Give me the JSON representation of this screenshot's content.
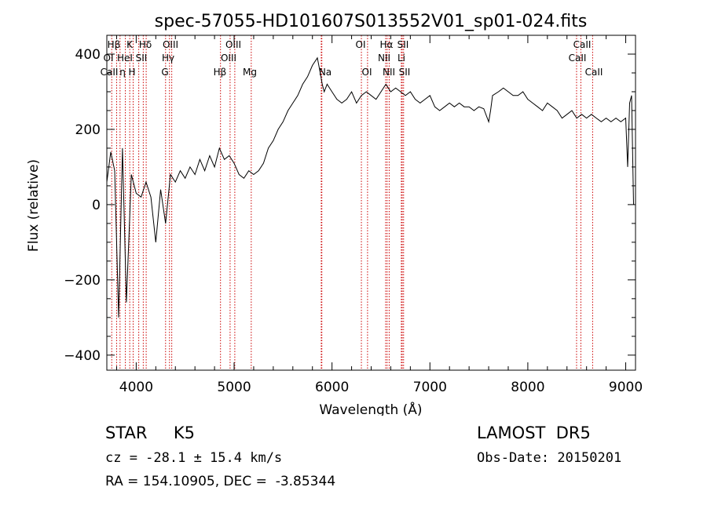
{
  "chart_data": {
    "type": "line",
    "title": "spec-57055-HD101607S013552V01_sp01-024.fits",
    "xlabel": "Wavelength (Å)",
    "ylabel": "Flux (relative)",
    "xlim": [
      3700,
      9100
    ],
    "ylim": [
      -440,
      450
    ],
    "xticks": [
      4000,
      5000,
      6000,
      7000,
      8000,
      9000
    ],
    "yticks": [
      -400,
      -200,
      0,
      200,
      400
    ],
    "grid": false,
    "line_color": "#000000",
    "marker_color": "#cc0000",
    "series": [
      {
        "x": [
          3700,
          3740,
          3780,
          3820,
          3860,
          3900,
          3950,
          4000,
          4050,
          4100,
          4150,
          4200,
          4250,
          4300,
          4350,
          4400,
          4450,
          4500,
          4550,
          4600,
          4650,
          4700,
          4750,
          4800,
          4850,
          4900,
          4950,
          5000,
          5050,
          5100,
          5150,
          5200,
          5250,
          5300,
          5350,
          5400,
          5450,
          5500,
          5550,
          5600,
          5650,
          5700,
          5750,
          5800,
          5850,
          5880,
          5900,
          5920,
          5950,
          6000,
          6050,
          6100,
          6150,
          6200,
          6250,
          6300,
          6350,
          6400,
          6450,
          6500,
          6550,
          6600,
          6650,
          6700,
          6750,
          6800,
          6850,
          6900,
          6950,
          7000,
          7050,
          7100,
          7150,
          7200,
          7250,
          7300,
          7350,
          7400,
          7450,
          7500,
          7550,
          7600,
          7620,
          7640,
          7700,
          7750,
          7800,
          7850,
          7900,
          7950,
          8000,
          8050,
          8100,
          8150,
          8200,
          8250,
          8300,
          8350,
          8400,
          8450,
          8500,
          8550,
          8600,
          8650,
          8700,
          8750,
          8800,
          8850,
          8900,
          8950,
          9000,
          9020,
          9040,
          9060,
          9080
        ],
        "y": [
          60,
          140,
          90,
          -300,
          150,
          -260,
          80,
          30,
          20,
          60,
          20,
          -100,
          40,
          -50,
          80,
          60,
          90,
          70,
          100,
          80,
          120,
          90,
          130,
          100,
          150,
          120,
          130,
          110,
          80,
          70,
          90,
          80,
          90,
          110,
          150,
          170,
          200,
          220,
          250,
          270,
          290,
          320,
          340,
          370,
          390,
          350,
          320,
          300,
          320,
          300,
          280,
          270,
          280,
          300,
          270,
          290,
          300,
          290,
          280,
          300,
          320,
          300,
          310,
          300,
          290,
          300,
          280,
          270,
          280,
          290,
          260,
          250,
          260,
          270,
          260,
          270,
          260,
          260,
          250,
          260,
          255,
          220,
          250,
          290,
          300,
          310,
          300,
          290,
          290,
          300,
          280,
          270,
          260,
          250,
          270,
          260,
          250,
          230,
          240,
          250,
          230,
          240,
          230,
          240,
          230,
          220,
          230,
          220,
          230,
          220,
          230,
          100,
          270,
          290,
          0
        ]
      }
    ],
    "lines_row1": [
      "Hβ",
      "K",
      "Hδ",
      "OIII",
      "OIII",
      "OI",
      "Hα",
      "SII",
      "CaII"
    ],
    "lines_row2": [
      "OI",
      "HeI",
      "SII",
      "Hγ",
      "OIII",
      "NII",
      "Li",
      "CaII"
    ],
    "lines_row3": [
      "CaII",
      "η",
      "H",
      "G",
      "Hβ",
      "Mg",
      "Na",
      "OI",
      "NII",
      "SII",
      "CaII"
    ],
    "line_markers_wl": [
      3750,
      3800,
      3835,
      3889,
      3934,
      3969,
      4026,
      4072,
      4102,
      4300,
      4340,
      4363,
      4861,
      4959,
      5007,
      5175,
      5890,
      5896,
      6300,
      6363,
      6548,
      6563,
      6584,
      6708,
      6717,
      6731,
      8498,
      8542,
      8662
    ]
  },
  "info": {
    "class_text": "STAR     K5",
    "survey_text": "LAMOST  DR5",
    "cz_text": "cz = -28.1 ± 15.4 km/s",
    "obs_date_text": "Obs-Date: 20150201",
    "radec_text": "RA = 154.10905, DEC =  -3.85344"
  }
}
